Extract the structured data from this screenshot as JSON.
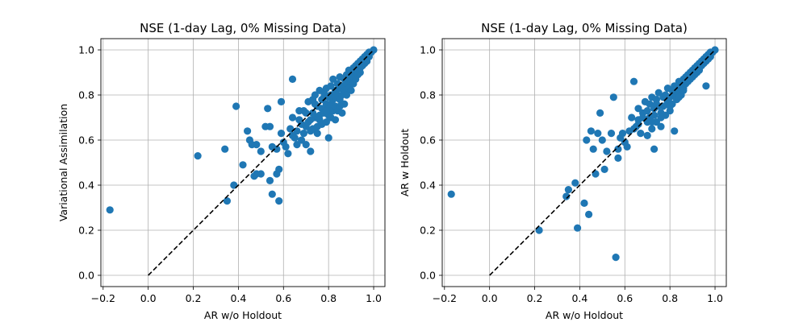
{
  "chart_data": [
    {
      "type": "scatter",
      "title": "NSE (1-day Lag, 0% Missing Data)",
      "xlabel": "AR w/o Holdout",
      "ylabel": "Variational Assimilation",
      "xlim": [
        -0.21,
        1.05
      ],
      "ylim": [
        -0.05,
        1.05
      ],
      "xticks": [
        "−0.2",
        "0.0",
        "0.2",
        "0.4",
        "0.6",
        "0.8",
        "1.0"
      ],
      "yticks": [
        "0.0",
        "0.2",
        "0.4",
        "0.6",
        "0.8",
        "1.0"
      ],
      "grid": true,
      "reference_line": {
        "style": "dashed",
        "color": "#000000",
        "from": [
          0,
          0
        ],
        "to": [
          1,
          1
        ]
      },
      "marker_color": "#1f77b4",
      "points": [
        [
          -0.17,
          0.29
        ],
        [
          0.22,
          0.53
        ],
        [
          0.34,
          0.56
        ],
        [
          0.35,
          0.33
        ],
        [
          0.38,
          0.4
        ],
        [
          0.39,
          0.75
        ],
        [
          0.42,
          0.49
        ],
        [
          0.44,
          0.64
        ],
        [
          0.45,
          0.6
        ],
        [
          0.46,
          0.58
        ],
        [
          0.47,
          0.44
        ],
        [
          0.48,
          0.45
        ],
        [
          0.48,
          0.58
        ],
        [
          0.5,
          0.45
        ],
        [
          0.5,
          0.55
        ],
        [
          0.52,
          0.66
        ],
        [
          0.53,
          0.74
        ],
        [
          0.54,
          0.42
        ],
        [
          0.54,
          0.66
        ],
        [
          0.55,
          0.57
        ],
        [
          0.55,
          0.36
        ],
        [
          0.57,
          0.56
        ],
        [
          0.57,
          0.45
        ],
        [
          0.58,
          0.47
        ],
        [
          0.58,
          0.33
        ],
        [
          0.59,
          0.77
        ],
        [
          0.59,
          0.63
        ],
        [
          0.6,
          0.59
        ],
        [
          0.61,
          0.57
        ],
        [
          0.62,
          0.54
        ],
        [
          0.63,
          0.65
        ],
        [
          0.64,
          0.87
        ],
        [
          0.64,
          0.7
        ],
        [
          0.65,
          0.61
        ],
        [
          0.66,
          0.58
        ],
        [
          0.67,
          0.69
        ],
        [
          0.67,
          0.73
        ],
        [
          0.68,
          0.6
        ],
        [
          0.69,
          0.63
        ],
        [
          0.69,
          0.73
        ],
        [
          0.7,
          0.72
        ],
        [
          0.7,
          0.58
        ],
        [
          0.71,
          0.77
        ],
        [
          0.71,
          0.68
        ],
        [
          0.72,
          0.64
        ],
        [
          0.72,
          0.55
        ],
        [
          0.73,
          0.72
        ],
        [
          0.73,
          0.65
        ],
        [
          0.73,
          0.78
        ],
        [
          0.74,
          0.7
        ],
        [
          0.74,
          0.8
        ],
        [
          0.75,
          0.75
        ],
        [
          0.75,
          0.66
        ],
        [
          0.75,
          0.63
        ],
        [
          0.76,
          0.82
        ],
        [
          0.76,
          0.71
        ],
        [
          0.76,
          0.69
        ],
        [
          0.77,
          0.78
        ],
        [
          0.77,
          0.74
        ],
        [
          0.77,
          0.67
        ],
        [
          0.78,
          0.79
        ],
        [
          0.78,
          0.72
        ],
        [
          0.78,
          0.81
        ],
        [
          0.79,
          0.76
        ],
        [
          0.79,
          0.68
        ],
        [
          0.79,
          0.83
        ],
        [
          0.8,
          0.74
        ],
        [
          0.8,
          0.79
        ],
        [
          0.8,
          0.71
        ],
        [
          0.8,
          0.61
        ],
        [
          0.81,
          0.8
        ],
        [
          0.81,
          0.76
        ],
        [
          0.81,
          0.84
        ],
        [
          0.82,
          0.78
        ],
        [
          0.82,
          0.73
        ],
        [
          0.82,
          0.87
        ],
        [
          0.83,
          0.82
        ],
        [
          0.83,
          0.75
        ],
        [
          0.83,
          0.79
        ],
        [
          0.84,
          0.85
        ],
        [
          0.84,
          0.8
        ],
        [
          0.84,
          0.73
        ],
        [
          0.85,
          0.83
        ],
        [
          0.85,
          0.78
        ],
        [
          0.85,
          0.88
        ],
        [
          0.86,
          0.84
        ],
        [
          0.86,
          0.8
        ],
        [
          0.86,
          0.72
        ],
        [
          0.87,
          0.87
        ],
        [
          0.87,
          0.82
        ],
        [
          0.87,
          0.76
        ],
        [
          0.88,
          0.89
        ],
        [
          0.88,
          0.85
        ],
        [
          0.88,
          0.8
        ],
        [
          0.89,
          0.88
        ],
        [
          0.89,
          0.83
        ],
        [
          0.89,
          0.91
        ],
        [
          0.9,
          0.9
        ],
        [
          0.9,
          0.86
        ],
        [
          0.9,
          0.82
        ],
        [
          0.91,
          0.92
        ],
        [
          0.91,
          0.88
        ],
        [
          0.91,
          0.85
        ],
        [
          0.92,
          0.93
        ],
        [
          0.92,
          0.9
        ],
        [
          0.92,
          0.87
        ],
        [
          0.93,
          0.94
        ],
        [
          0.93,
          0.91
        ],
        [
          0.93,
          0.89
        ],
        [
          0.94,
          0.95
        ],
        [
          0.94,
          0.92
        ],
        [
          0.94,
          0.9
        ],
        [
          0.95,
          0.96
        ],
        [
          0.95,
          0.93
        ],
        [
          0.96,
          0.97
        ],
        [
          0.96,
          0.94
        ],
        [
          0.97,
          0.98
        ],
        [
          0.97,
          0.95
        ],
        [
          0.98,
          0.99
        ],
        [
          0.98,
          0.97
        ],
        [
          0.99,
          0.99
        ],
        [
          1.0,
          1.0
        ],
        [
          0.79,
          0.73
        ],
        [
          0.81,
          0.7
        ],
        [
          0.83,
          0.69
        ],
        [
          0.85,
          0.75
        ],
        [
          0.74,
          0.76
        ],
        [
          0.72,
          0.69
        ],
        [
          0.7,
          0.66
        ],
        [
          0.68,
          0.67
        ],
        [
          0.66,
          0.64
        ],
        [
          0.64,
          0.62
        ]
      ]
    },
    {
      "type": "scatter",
      "title": "NSE (1-day Lag, 0% Missing Data)",
      "xlabel": "AR w/o Holdout",
      "ylabel": "AR w Holdout",
      "xlim": [
        -0.21,
        1.05
      ],
      "ylim": [
        -0.05,
        1.05
      ],
      "xticks": [
        "−0.2",
        "0.0",
        "0.2",
        "0.4",
        "0.6",
        "0.8",
        "1.0"
      ],
      "yticks": [
        "0.0",
        "0.2",
        "0.4",
        "0.6",
        "0.8",
        "1.0"
      ],
      "grid": true,
      "reference_line": {
        "style": "dashed",
        "color": "#000000",
        "from": [
          0,
          0
        ],
        "to": [
          1,
          1
        ]
      },
      "marker_color": "#1f77b4",
      "points": [
        [
          -0.17,
          0.36
        ],
        [
          0.22,
          0.2
        ],
        [
          0.34,
          0.35
        ],
        [
          0.35,
          0.38
        ],
        [
          0.38,
          0.41
        ],
        [
          0.39,
          0.21
        ],
        [
          0.42,
          0.32
        ],
        [
          0.43,
          0.6
        ],
        [
          0.44,
          0.27
        ],
        [
          0.45,
          0.64
        ],
        [
          0.46,
          0.56
        ],
        [
          0.47,
          0.45
        ],
        [
          0.48,
          0.63
        ],
        [
          0.49,
          0.72
        ],
        [
          0.5,
          0.6
        ],
        [
          0.51,
          0.47
        ],
        [
          0.52,
          0.55
        ],
        [
          0.54,
          0.63
        ],
        [
          0.55,
          0.79
        ],
        [
          0.56,
          0.08
        ],
        [
          0.57,
          0.52
        ],
        [
          0.57,
          0.56
        ],
        [
          0.58,
          0.61
        ],
        [
          0.59,
          0.63
        ],
        [
          0.6,
          0.59
        ],
        [
          0.61,
          0.57
        ],
        [
          0.62,
          0.64
        ],
        [
          0.63,
          0.7
        ],
        [
          0.64,
          0.86
        ],
        [
          0.65,
          0.66
        ],
        [
          0.66,
          0.69
        ],
        [
          0.66,
          0.74
        ],
        [
          0.67,
          0.63
        ],
        [
          0.68,
          0.72
        ],
        [
          0.69,
          0.77
        ],
        [
          0.7,
          0.68
        ],
        [
          0.7,
          0.62
        ],
        [
          0.71,
          0.76
        ],
        [
          0.71,
          0.7
        ],
        [
          0.72,
          0.65
        ],
        [
          0.72,
          0.79
        ],
        [
          0.73,
          0.74
        ],
        [
          0.73,
          0.56
        ],
        [
          0.73,
          0.71
        ],
        [
          0.74,
          0.78
        ],
        [
          0.74,
          0.68
        ],
        [
          0.75,
          0.75
        ],
        [
          0.75,
          0.81
        ],
        [
          0.76,
          0.72
        ],
        [
          0.76,
          0.66
        ],
        [
          0.77,
          0.79
        ],
        [
          0.77,
          0.75
        ],
        [
          0.78,
          0.8
        ],
        [
          0.78,
          0.71
        ],
        [
          0.79,
          0.83
        ],
        [
          0.79,
          0.77
        ],
        [
          0.8,
          0.79
        ],
        [
          0.8,
          0.73
        ],
        [
          0.81,
          0.82
        ],
        [
          0.81,
          0.76
        ],
        [
          0.82,
          0.84
        ],
        [
          0.82,
          0.8
        ],
        [
          0.82,
          0.64
        ],
        [
          0.83,
          0.83
        ],
        [
          0.83,
          0.78
        ],
        [
          0.84,
          0.86
        ],
        [
          0.84,
          0.81
        ],
        [
          0.85,
          0.85
        ],
        [
          0.85,
          0.8
        ],
        [
          0.86,
          0.87
        ],
        [
          0.86,
          0.83
        ],
        [
          0.87,
          0.88
        ],
        [
          0.87,
          0.85
        ],
        [
          0.88,
          0.89
        ],
        [
          0.88,
          0.86
        ],
        [
          0.89,
          0.9
        ],
        [
          0.89,
          0.87
        ],
        [
          0.9,
          0.91
        ],
        [
          0.9,
          0.88
        ],
        [
          0.91,
          0.92
        ],
        [
          0.91,
          0.89
        ],
        [
          0.92,
          0.93
        ],
        [
          0.92,
          0.9
        ],
        [
          0.93,
          0.94
        ],
        [
          0.93,
          0.91
        ],
        [
          0.94,
          0.95
        ],
        [
          0.94,
          0.93
        ],
        [
          0.95,
          0.96
        ],
        [
          0.95,
          0.94
        ],
        [
          0.96,
          0.97
        ],
        [
          0.96,
          0.95
        ],
        [
          0.97,
          0.98
        ],
        [
          0.97,
          0.96
        ],
        [
          0.98,
          0.99
        ],
        [
          0.98,
          0.97
        ],
        [
          0.99,
          0.99
        ],
        [
          1.0,
          1.0
        ],
        [
          0.96,
          0.84
        ],
        [
          0.74,
          0.76
        ],
        [
          0.72,
          0.68
        ],
        [
          0.7,
          0.73
        ],
        [
          0.68,
          0.7
        ],
        [
          0.66,
          0.67
        ],
        [
          0.64,
          0.65
        ],
        [
          0.8,
          0.75
        ],
        [
          0.84,
          0.79
        ],
        [
          0.86,
          0.82
        ],
        [
          0.76,
          0.7
        ]
      ]
    }
  ]
}
